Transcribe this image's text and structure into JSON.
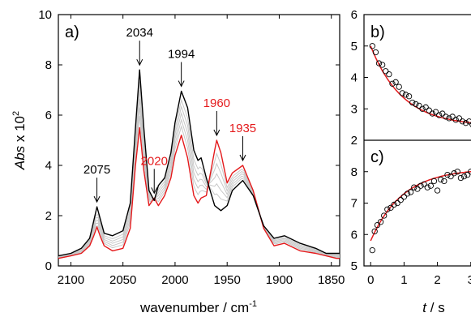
{
  "chart_data": [
    {
      "panel": "a)",
      "type": "line",
      "xlabel_main": "wavenumber / cm",
      "xlabel_sup": "-1",
      "ylabel_main": "Abs",
      "ylabel_mid": " x 10",
      "ylabel_sup": "2",
      "xlim": [
        2112,
        1842
      ],
      "ylim": [
        0,
        10
      ],
      "x_ticks": [
        2100,
        2050,
        2000,
        1950,
        1900,
        1850
      ],
      "y_ticks": [
        0,
        2,
        4,
        6,
        8,
        10
      ],
      "annotations": [
        {
          "text": "2075",
          "x": 2075,
          "color": "#000000"
        },
        {
          "text": "2034",
          "x": 2034,
          "color": "#000000"
        },
        {
          "text": "1994",
          "x": 1994,
          "color": "#000000"
        },
        {
          "text": "2020",
          "x": 2020,
          "color": "#e41a1c"
        },
        {
          "text": "1960",
          "x": 1960,
          "color": "#e41a1c"
        },
        {
          "text": "1935",
          "x": 1935,
          "color": "#e41a1c"
        }
      ],
      "series": [
        {
          "color": "#000000",
          "x": [
            2112,
            2100,
            2090,
            2082,
            2078,
            2075,
            2072,
            2068,
            2060,
            2050,
            2043,
            2038,
            2034,
            2030,
            2025,
            2020,
            2016,
            2010,
            2004,
            2000,
            1994,
            1988,
            1982,
            1978,
            1975,
            1970,
            1962,
            1956,
            1950,
            1945,
            1935,
            1925,
            1915,
            1905,
            1895,
            1880,
            1865,
            1855,
            1845,
            1842
          ],
          "y": [
            0.4,
            0.5,
            0.7,
            1.1,
            1.8,
            2.35,
            1.9,
            1.3,
            1.2,
            1.4,
            2.5,
            5.5,
            7.8,
            5.5,
            3.0,
            2.6,
            3.2,
            3.5,
            4.5,
            5.7,
            6.95,
            6.3,
            4.6,
            4.2,
            4.3,
            3.5,
            2.4,
            2.2,
            2.4,
            3.0,
            3.4,
            2.8,
            1.6,
            1.1,
            1.2,
            0.9,
            0.7,
            0.5,
            0.5,
            0.5
          ]
        },
        {
          "color": "#e41a1c",
          "x": [
            2112,
            2100,
            2090,
            2082,
            2078,
            2075,
            2072,
            2068,
            2060,
            2050,
            2043,
            2038,
            2034,
            2030,
            2025,
            2020,
            2016,
            2010,
            2004,
            2000,
            1994,
            1988,
            1982,
            1978,
            1975,
            1970,
            1962,
            1960,
            1956,
            1950,
            1945,
            1935,
            1925,
            1915,
            1905,
            1895,
            1880,
            1865,
            1855,
            1845,
            1842
          ],
          "y": [
            0.3,
            0.4,
            0.5,
            0.8,
            1.2,
            1.55,
            1.2,
            0.8,
            0.6,
            0.7,
            1.5,
            4.0,
            5.5,
            3.8,
            2.4,
            2.7,
            2.4,
            2.8,
            3.5,
            4.4,
            5.2,
            4.3,
            2.8,
            2.5,
            2.7,
            2.8,
            4.6,
            5.0,
            4.5,
            3.3,
            3.7,
            4.0,
            3.0,
            1.5,
            0.8,
            0.9,
            0.6,
            0.5,
            0.4,
            0.3,
            0.3
          ]
        }
      ]
    },
    {
      "panel": "b)",
      "type": "scatter",
      "ylim": [
        2,
        6
      ],
      "y_ticks": [
        2,
        3,
        4,
        5,
        6
      ],
      "xlim": [
        -0.2,
        3.2
      ],
      "x": [
        0.05,
        0.15,
        0.25,
        0.35,
        0.45,
        0.55,
        0.65,
        0.75,
        0.85,
        0.95,
        1.05,
        1.15,
        1.25,
        1.35,
        1.45,
        1.55,
        1.65,
        1.75,
        1.85,
        1.95,
        2.05,
        2.15,
        2.25,
        2.35,
        2.45,
        2.55,
        2.65,
        2.75,
        2.85,
        2.95,
        3.05
      ],
      "values": [
        5.0,
        4.8,
        4.45,
        4.4,
        4.2,
        4.1,
        3.8,
        3.85,
        3.7,
        3.5,
        3.45,
        3.4,
        3.2,
        3.15,
        3.1,
        3.0,
        3.05,
        2.95,
        2.85,
        2.9,
        2.8,
        2.85,
        2.75,
        2.7,
        2.75,
        2.65,
        2.7,
        2.6,
        2.55,
        2.6,
        2.5
      ],
      "fit_color": "#e41a1c"
    },
    {
      "panel": "c)",
      "type": "scatter",
      "ylim": [
        5,
        9
      ],
      "y_ticks": [
        5,
        6,
        7,
        8
      ],
      "xlim": [
        -0.2,
        3.2
      ],
      "x_ticks": [
        0,
        1,
        2,
        3
      ],
      "xlabel_var": "t",
      "xlabel_unit": " / s",
      "x": [
        0.05,
        0.12,
        0.2,
        0.3,
        0.4,
        0.5,
        0.6,
        0.7,
        0.8,
        0.9,
        1.0,
        1.1,
        1.2,
        1.3,
        1.4,
        1.5,
        1.6,
        1.7,
        1.8,
        1.9,
        2.0,
        2.1,
        2.2,
        2.3,
        2.4,
        2.5,
        2.6,
        2.7,
        2.8,
        2.9,
        3.0,
        3.1
      ],
      "values": [
        5.5,
        6.1,
        6.3,
        6.4,
        6.6,
        6.8,
        6.85,
        6.95,
        7.0,
        7.1,
        7.2,
        7.3,
        7.35,
        7.5,
        7.45,
        7.55,
        7.6,
        7.5,
        7.55,
        7.7,
        7.4,
        7.75,
        7.7,
        7.9,
        7.85,
        7.95,
        8.0,
        7.8,
        7.85,
        7.9,
        8.0,
        8.1
      ],
      "fit_color": "#e41a1c"
    }
  ]
}
